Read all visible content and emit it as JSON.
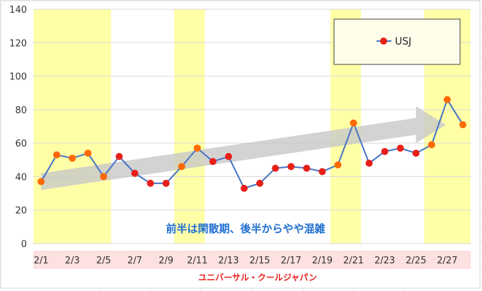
{
  "chart_data": {
    "type": "line",
    "title": "",
    "xlabel": "ユニバーサル・クールジャパン",
    "ylabel": "",
    "ylim": [
      0,
      140
    ],
    "yticks": [
      0,
      20,
      40,
      60,
      80,
      100,
      120,
      140
    ],
    "x_tick_labels": [
      "2/1",
      "2/3",
      "2/5",
      "2/7",
      "2/9",
      "2/11",
      "2/13",
      "2/15",
      "2/17",
      "2/19",
      "2/21",
      "2/23",
      "2/25",
      "2/27"
    ],
    "grid": "horizontal",
    "legend_position": "top-right",
    "x": [
      "2/1",
      "2/2",
      "2/3",
      "2/4",
      "2/5",
      "2/6",
      "2/7",
      "2/8",
      "2/9",
      "2/10",
      "2/11",
      "2/12",
      "2/13",
      "2/14",
      "2/15",
      "2/16",
      "2/17",
      "2/18",
      "2/19",
      "2/20",
      "2/21",
      "2/22",
      "2/23",
      "2/24",
      "2/25",
      "2/26",
      "2/27",
      "2/28"
    ],
    "series": [
      {
        "name": "USJ",
        "values": [
          37,
          53,
          51,
          54,
          40,
          52,
          42,
          36,
          36,
          46,
          57,
          49,
          52,
          33,
          36,
          45,
          46,
          45,
          43,
          47,
          72,
          48,
          55,
          57,
          54,
          59,
          86,
          71
        ]
      }
    ],
    "highlight_date_ranges": [
      [
        "2/1",
        "2/5"
      ],
      [
        "2/10",
        "2/11"
      ],
      [
        "2/20",
        "2/21"
      ],
      [
        "2/26",
        "2/28"
      ]
    ],
    "annotation": "前半は閑散期、後半からやや混雑",
    "colors": {
      "line": "#4472c4",
      "marker": "#e8201a",
      "marker_highlight": "#ff6a00",
      "highlight_band": "#ffffa8",
      "axis_band": "#fde0e0",
      "annotation": "#1f6fd1",
      "xlabel": "#e8201a",
      "arrow": "#c8c8c8"
    }
  }
}
